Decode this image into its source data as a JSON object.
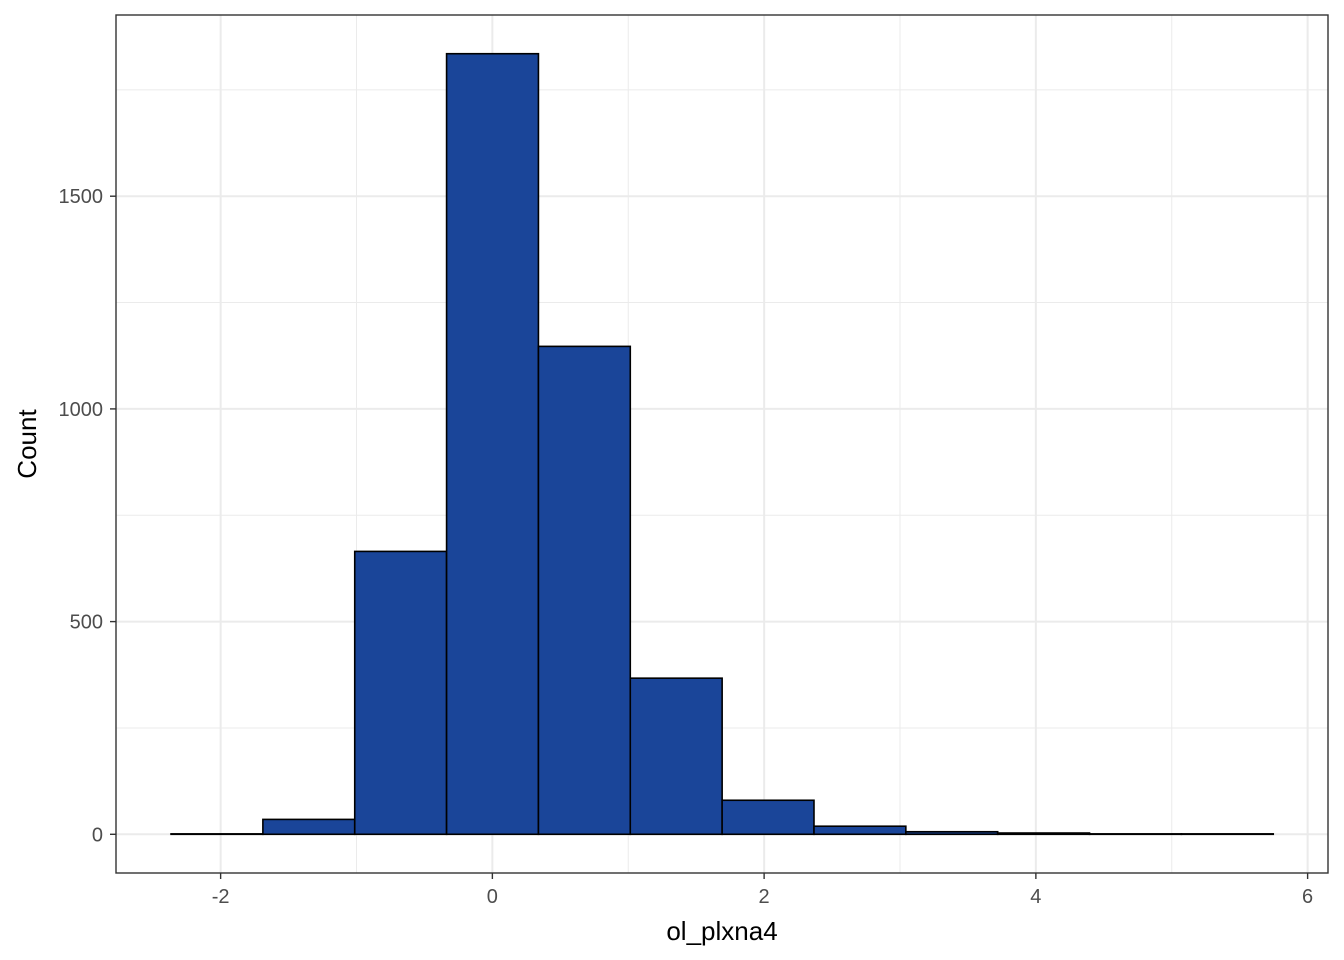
{
  "chart_data": {
    "type": "bar",
    "xlabel": "ol_plxna4",
    "ylabel": "Count",
    "bin_width": 0.676,
    "bins": [
      {
        "x_start": -2.365,
        "x_end": -1.689,
        "count": 1
      },
      {
        "x_start": -1.689,
        "x_end": -1.013,
        "count": 35
      },
      {
        "x_start": -1.013,
        "x_end": -0.337,
        "count": 665
      },
      {
        "x_start": -0.337,
        "x_end": 0.339,
        "count": 1835
      },
      {
        "x_start": 0.339,
        "x_end": 1.015,
        "count": 1147
      },
      {
        "x_start": 1.015,
        "x_end": 1.691,
        "count": 367
      },
      {
        "x_start": 1.691,
        "x_end": 2.367,
        "count": 80
      },
      {
        "x_start": 2.367,
        "x_end": 3.043,
        "count": 19
      },
      {
        "x_start": 3.043,
        "x_end": 3.719,
        "count": 6
      },
      {
        "x_start": 3.719,
        "x_end": 4.395,
        "count": 3
      },
      {
        "x_start": 4.395,
        "x_end": 5.071,
        "count": 1
      },
      {
        "x_start": 5.071,
        "x_end": 5.747,
        "count": 1
      }
    ],
    "xlim": [
      -2.77,
      6.15
    ],
    "ylim": [
      -91,
      1926
    ],
    "x_ticks": [
      -2,
      0,
      2,
      4,
      6
    ],
    "x_tick_labels": [
      "-2",
      "0",
      "2",
      "4",
      "6"
    ],
    "y_ticks": [
      0,
      500,
      1000,
      1500
    ],
    "y_tick_labels": [
      "0",
      "500",
      "1000",
      "1500"
    ],
    "y_minor": [
      250,
      750,
      1250,
      1750
    ],
    "x_minor": [
      -1,
      1,
      3,
      5
    ],
    "grid": true,
    "fill_color": "#1A4599",
    "edge_color": "#000000",
    "grid_color": "#EBEBEB",
    "panel_border_color": "#333333"
  }
}
